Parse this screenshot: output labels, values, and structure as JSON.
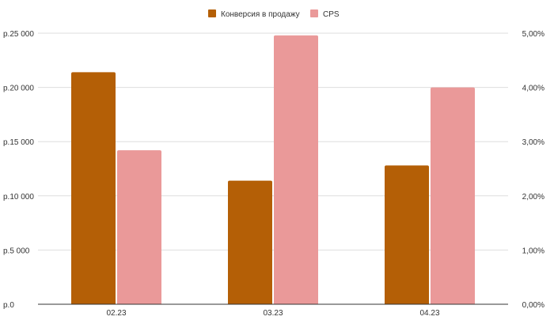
{
  "chart_data": {
    "type": "bar",
    "categories": [
      "02.23",
      "03.23",
      "04.23"
    ],
    "series": [
      {
        "name": "Конверсия в продажу",
        "axis": "right",
        "color": "#b45f06",
        "values": [
          4.28,
          2.28,
          2.56
        ]
      },
      {
        "name": "CPS",
        "axis": "left",
        "color": "#ea9999",
        "values": [
          14200,
          24800,
          20000
        ]
      }
    ],
    "y_left": {
      "min": 0,
      "max": 25000,
      "ticks": [
        "р.0",
        "р.5 000",
        "р.10 000",
        "р.15 000",
        "р.20 000",
        "р.25 000"
      ]
    },
    "y_right": {
      "min": 0,
      "max": 5,
      "ticks": [
        "0,00%",
        "1,00%",
        "2,00%",
        "3,00%",
        "4,00%",
        "5,00%"
      ]
    },
    "grid": true,
    "legend_position": "top"
  }
}
